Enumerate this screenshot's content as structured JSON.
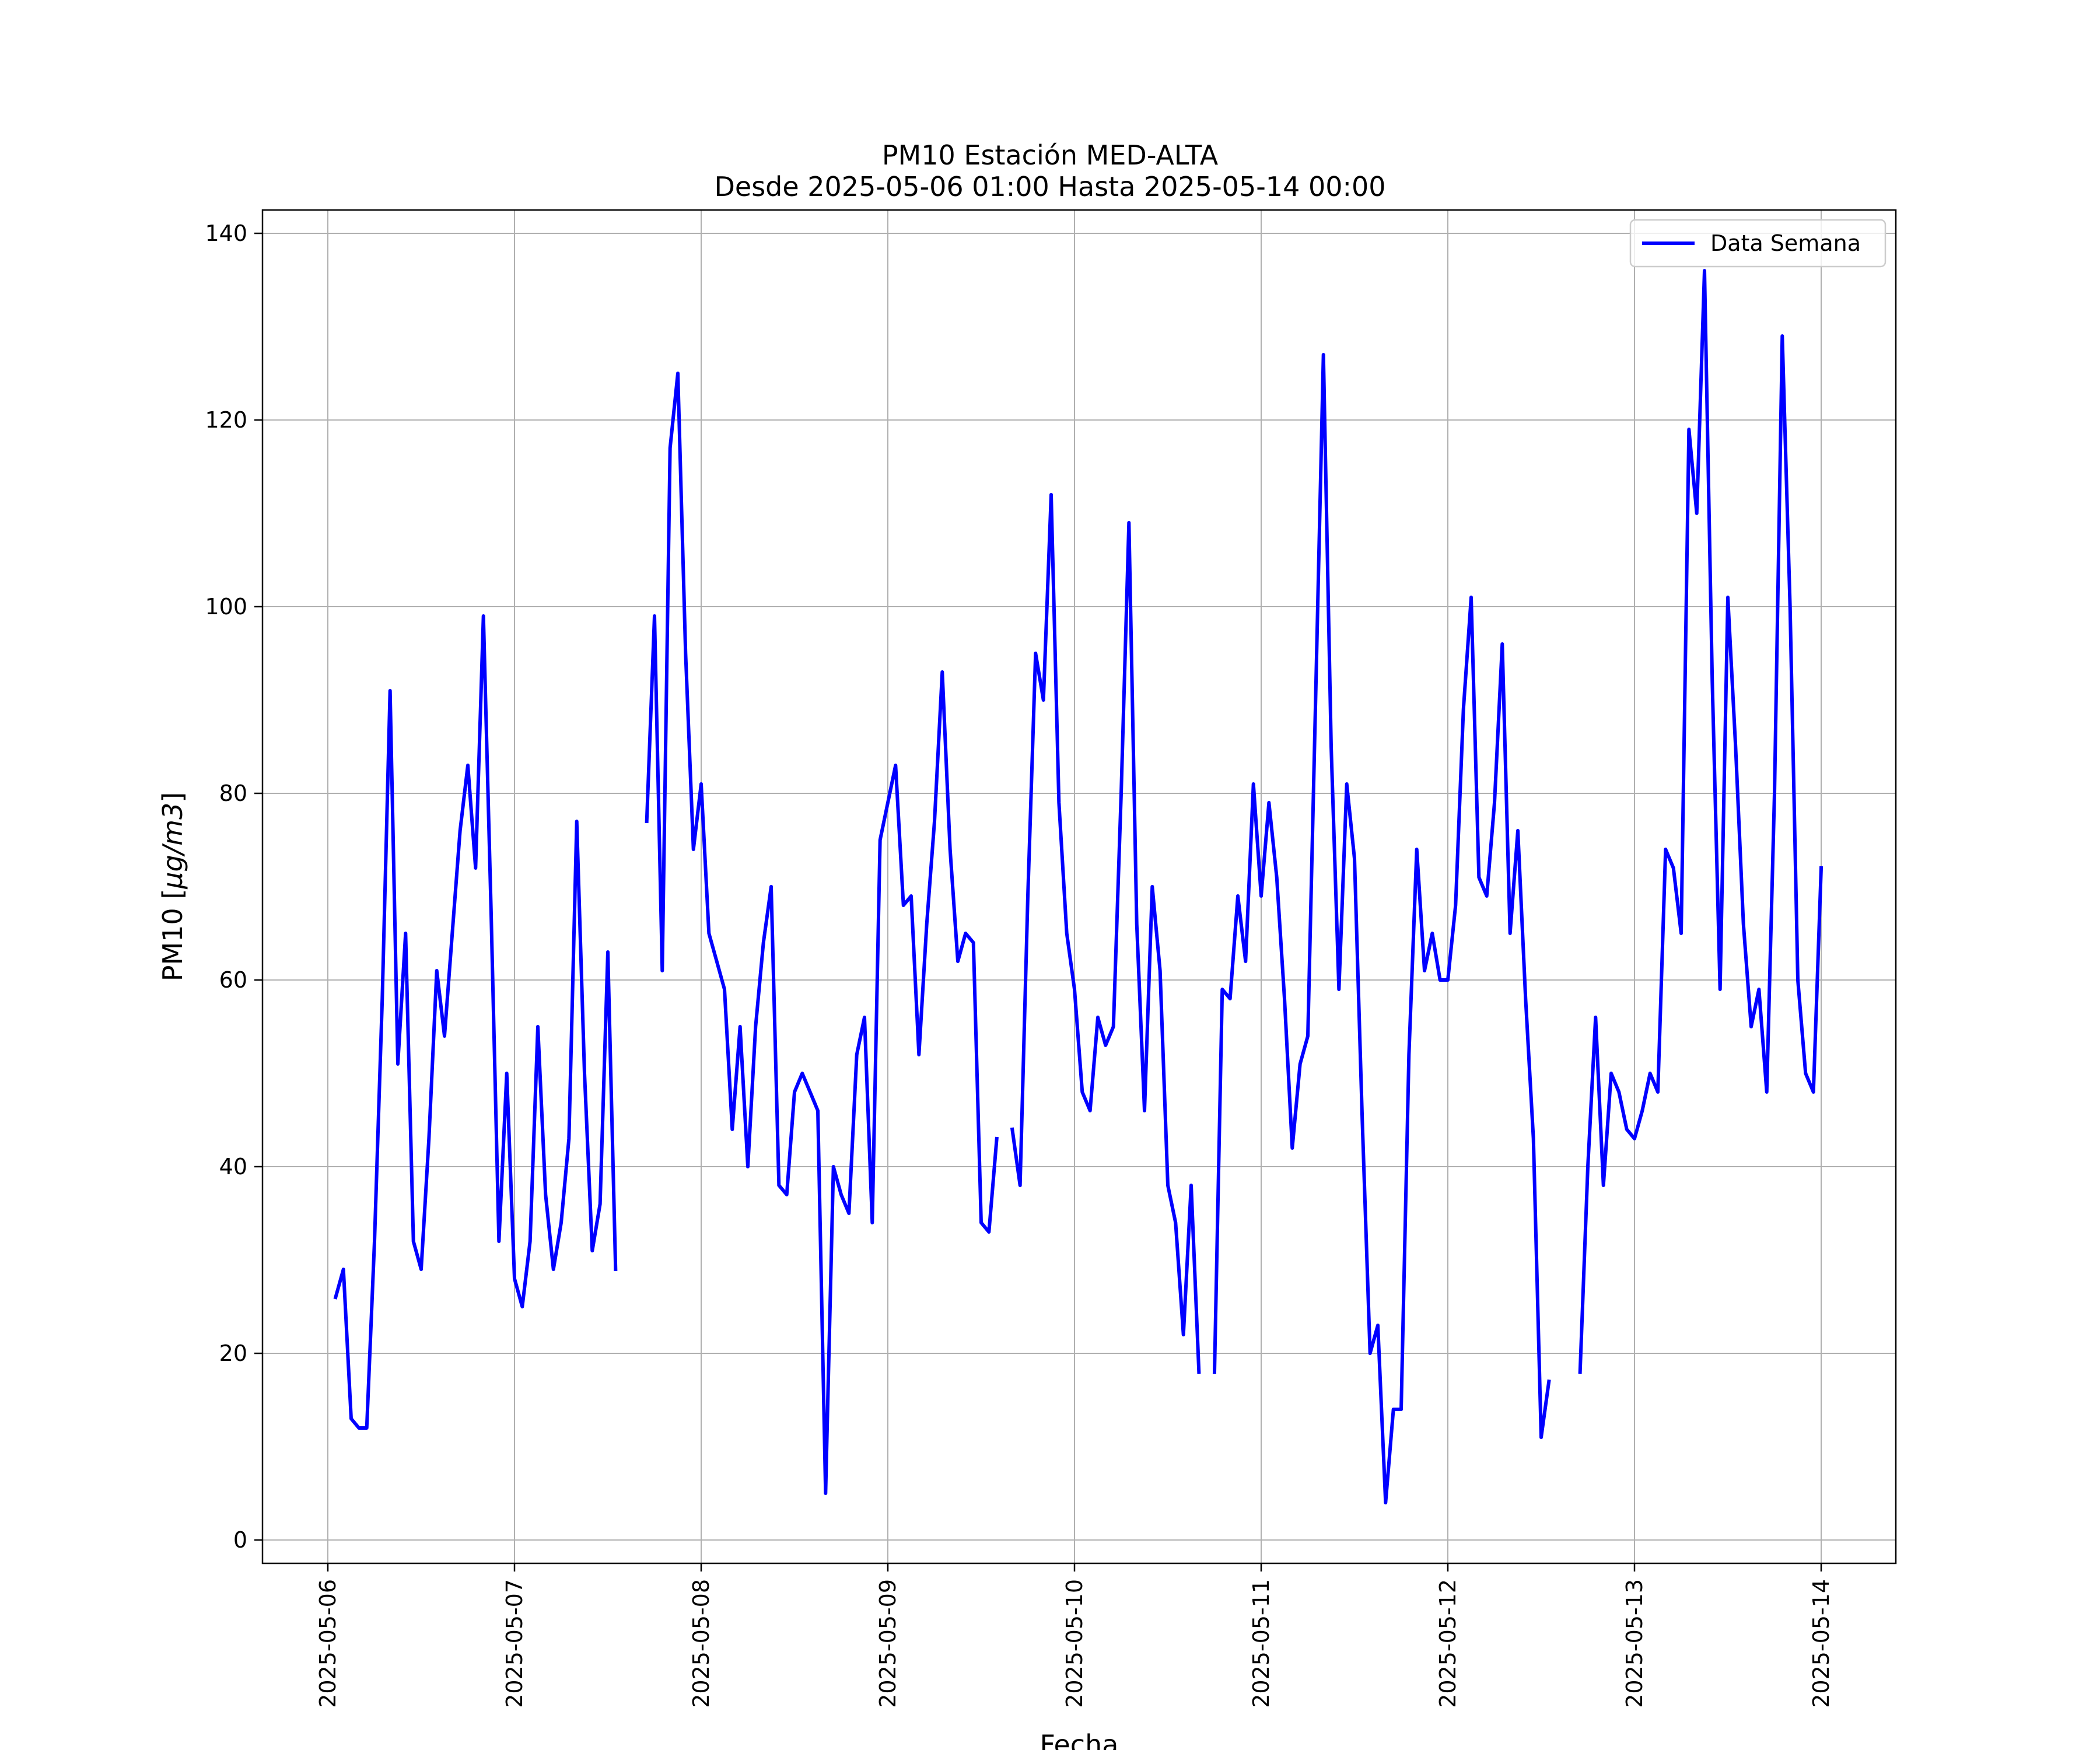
{
  "chart_data": {
    "type": "line",
    "title": "PM10 Estación MED-ALTA",
    "subtitle": "Desde 2025-05-06 01:00 Hasta 2025-05-14 00:00",
    "xlabel": "Fecha",
    "ylabel": "PM10 [μg/m3]",
    "ylabel_prefix": "PM10 [",
    "ylabel_units": "μg/m3",
    "ylabel_suffix": "]",
    "x_ticks": [
      "2025-05-06",
      "2025-05-07",
      "2025-05-08",
      "2025-05-09",
      "2025-05-10",
      "2025-05-11",
      "2025-05-12",
      "2025-05-13",
      "2025-05-14"
    ],
    "y_ticks": [
      0,
      20,
      40,
      60,
      80,
      100,
      120,
      140
    ],
    "xlim": [
      "2025-05-05 15:36",
      "2025-05-14 09:36"
    ],
    "ylim": [
      -2.5,
      142.5
    ],
    "grid": true,
    "legend_position": "top-right",
    "line_color": "#0000ff",
    "series": [
      {
        "name": "Data Semana",
        "color": "#0000ff",
        "points": [
          [
            "2025-05-06 01:00",
            26
          ],
          [
            "2025-05-06 02:00",
            29
          ],
          [
            "2025-05-06 03:00",
            13
          ],
          [
            "2025-05-06 04:00",
            12
          ],
          [
            "2025-05-06 05:00",
            12
          ],
          [
            "2025-05-06 06:00",
            32
          ],
          [
            "2025-05-06 07:00",
            58
          ],
          [
            "2025-05-06 08:00",
            91
          ],
          [
            "2025-05-06 09:00",
            51
          ],
          [
            "2025-05-06 10:00",
            65
          ],
          [
            "2025-05-06 11:00",
            32
          ],
          [
            "2025-05-06 12:00",
            29
          ],
          [
            "2025-05-06 13:00",
            43
          ],
          [
            "2025-05-06 14:00",
            61
          ],
          [
            "2025-05-06 15:00",
            54
          ],
          [
            "2025-05-06 16:00",
            65
          ],
          [
            "2025-05-06 17:00",
            76
          ],
          [
            "2025-05-06 18:00",
            83
          ],
          [
            "2025-05-06 19:00",
            72
          ],
          [
            "2025-05-06 20:00",
            99
          ],
          [
            "2025-05-06 21:00",
            67
          ],
          [
            "2025-05-06 22:00",
            32
          ],
          [
            "2025-05-06 23:00",
            50
          ],
          [
            "2025-05-07 00:00",
            28
          ],
          [
            "2025-05-07 01:00",
            25
          ],
          [
            "2025-05-07 02:00",
            32
          ],
          [
            "2025-05-07 03:00",
            55
          ],
          [
            "2025-05-07 04:00",
            37
          ],
          [
            "2025-05-07 05:00",
            29
          ],
          [
            "2025-05-07 06:00",
            34
          ],
          [
            "2025-05-07 07:00",
            43
          ],
          [
            "2025-05-07 08:00",
            77
          ],
          [
            "2025-05-07 09:00",
            50
          ],
          [
            "2025-05-07 10:00",
            31
          ],
          [
            "2025-05-07 11:00",
            36
          ],
          [
            "2025-05-07 12:00",
            63
          ],
          [
            "2025-05-07 13:00",
            29
          ],
          [
            "2025-05-07 14:00",
            null
          ],
          [
            "2025-05-07 15:00",
            null
          ],
          [
            "2025-05-07 16:00",
            null
          ],
          [
            "2025-05-07 17:00",
            77
          ],
          [
            "2025-05-07 18:00",
            99
          ],
          [
            "2025-05-07 19:00",
            61
          ],
          [
            "2025-05-07 20:00",
            117
          ],
          [
            "2025-05-07 21:00",
            125
          ],
          [
            "2025-05-07 22:00",
            95
          ],
          [
            "2025-05-07 23:00",
            74
          ],
          [
            "2025-05-08 00:00",
            81
          ],
          [
            "2025-05-08 01:00",
            65
          ],
          [
            "2025-05-08 02:00",
            62
          ],
          [
            "2025-05-08 03:00",
            59
          ],
          [
            "2025-05-08 04:00",
            44
          ],
          [
            "2025-05-08 05:00",
            55
          ],
          [
            "2025-05-08 06:00",
            40
          ],
          [
            "2025-05-08 07:00",
            55
          ],
          [
            "2025-05-08 08:00",
            64
          ],
          [
            "2025-05-08 09:00",
            70
          ],
          [
            "2025-05-08 10:00",
            38
          ],
          [
            "2025-05-08 11:00",
            37
          ],
          [
            "2025-05-08 12:00",
            48
          ],
          [
            "2025-05-08 13:00",
            50
          ],
          [
            "2025-05-08 14:00",
            48
          ],
          [
            "2025-05-08 15:00",
            46
          ],
          [
            "2025-05-08 16:00",
            5
          ],
          [
            "2025-05-08 17:00",
            40
          ],
          [
            "2025-05-08 18:00",
            37
          ],
          [
            "2025-05-08 19:00",
            35
          ],
          [
            "2025-05-08 20:00",
            52
          ],
          [
            "2025-05-08 21:00",
            56
          ],
          [
            "2025-05-08 22:00",
            34
          ],
          [
            "2025-05-08 23:00",
            75
          ],
          [
            "2025-05-09 00:00",
            79
          ],
          [
            "2025-05-09 01:00",
            83
          ],
          [
            "2025-05-09 02:00",
            68
          ],
          [
            "2025-05-09 03:00",
            69
          ],
          [
            "2025-05-09 04:00",
            52
          ],
          [
            "2025-05-09 05:00",
            66
          ],
          [
            "2025-05-09 06:00",
            77
          ],
          [
            "2025-05-09 07:00",
            93
          ],
          [
            "2025-05-09 08:00",
            74
          ],
          [
            "2025-05-09 09:00",
            62
          ],
          [
            "2025-05-09 10:00",
            65
          ],
          [
            "2025-05-09 11:00",
            64
          ],
          [
            "2025-05-09 12:00",
            34
          ],
          [
            "2025-05-09 13:00",
            33
          ],
          [
            "2025-05-09 14:00",
            43
          ],
          [
            "2025-05-09 15:00",
            null
          ],
          [
            "2025-05-09 16:00",
            44
          ],
          [
            "2025-05-09 17:00",
            38
          ],
          [
            "2025-05-09 18:00",
            69
          ],
          [
            "2025-05-09 19:00",
            95
          ],
          [
            "2025-05-09 20:00",
            90
          ],
          [
            "2025-05-09 21:00",
            112
          ],
          [
            "2025-05-09 22:00",
            79
          ],
          [
            "2025-05-09 23:00",
            65
          ],
          [
            "2025-05-10 00:00",
            59
          ],
          [
            "2025-05-10 01:00",
            48
          ],
          [
            "2025-05-10 02:00",
            46
          ],
          [
            "2025-05-10 03:00",
            56
          ],
          [
            "2025-05-10 04:00",
            53
          ],
          [
            "2025-05-10 05:00",
            55
          ],
          [
            "2025-05-10 06:00",
            80
          ],
          [
            "2025-05-10 07:00",
            109
          ],
          [
            "2025-05-10 08:00",
            66
          ],
          [
            "2025-05-10 09:00",
            46
          ],
          [
            "2025-05-10 10:00",
            70
          ],
          [
            "2025-05-10 11:00",
            61
          ],
          [
            "2025-05-10 12:00",
            38
          ],
          [
            "2025-05-10 13:00",
            34
          ],
          [
            "2025-05-10 14:00",
            22
          ],
          [
            "2025-05-10 15:00",
            38
          ],
          [
            "2025-05-10 16:00",
            18
          ],
          [
            "2025-05-10 17:00",
            null
          ],
          [
            "2025-05-10 18:00",
            18
          ],
          [
            "2025-05-10 19:00",
            59
          ],
          [
            "2025-05-10 20:00",
            58
          ],
          [
            "2025-05-10 21:00",
            69
          ],
          [
            "2025-05-10 22:00",
            62
          ],
          [
            "2025-05-10 23:00",
            81
          ],
          [
            "2025-05-11 00:00",
            69
          ],
          [
            "2025-05-11 01:00",
            79
          ],
          [
            "2025-05-11 02:00",
            71
          ],
          [
            "2025-05-11 03:00",
            58
          ],
          [
            "2025-05-11 04:00",
            42
          ],
          [
            "2025-05-11 05:00",
            51
          ],
          [
            "2025-05-11 06:00",
            54
          ],
          [
            "2025-05-11 07:00",
            90
          ],
          [
            "2025-05-11 08:00",
            127
          ],
          [
            "2025-05-11 09:00",
            85
          ],
          [
            "2025-05-11 10:00",
            59
          ],
          [
            "2025-05-11 11:00",
            81
          ],
          [
            "2025-05-11 12:00",
            73
          ],
          [
            "2025-05-11 13:00",
            45
          ],
          [
            "2025-05-11 14:00",
            20
          ],
          [
            "2025-05-11 15:00",
            23
          ],
          [
            "2025-05-11 16:00",
            4
          ],
          [
            "2025-05-11 17:00",
            14
          ],
          [
            "2025-05-11 18:00",
            14
          ],
          [
            "2025-05-11 19:00",
            52
          ],
          [
            "2025-05-11 20:00",
            74
          ],
          [
            "2025-05-11 21:00",
            61
          ],
          [
            "2025-05-11 22:00",
            65
          ],
          [
            "2025-05-11 23:00",
            60
          ],
          [
            "2025-05-12 00:00",
            60
          ],
          [
            "2025-05-12 01:00",
            68
          ],
          [
            "2025-05-12 02:00",
            89
          ],
          [
            "2025-05-12 03:00",
            101
          ],
          [
            "2025-05-12 04:00",
            71
          ],
          [
            "2025-05-12 05:00",
            69
          ],
          [
            "2025-05-12 06:00",
            79
          ],
          [
            "2025-05-12 07:00",
            96
          ],
          [
            "2025-05-12 08:00",
            65
          ],
          [
            "2025-05-12 09:00",
            76
          ],
          [
            "2025-05-12 10:00",
            58
          ],
          [
            "2025-05-12 11:00",
            43
          ],
          [
            "2025-05-12 12:00",
            11
          ],
          [
            "2025-05-12 13:00",
            17
          ],
          [
            "2025-05-12 14:00",
            null
          ],
          [
            "2025-05-12 15:00",
            null
          ],
          [
            "2025-05-12 16:00",
            null
          ],
          [
            "2025-05-12 17:00",
            18
          ],
          [
            "2025-05-12 18:00",
            40
          ],
          [
            "2025-05-12 19:00",
            56
          ],
          [
            "2025-05-12 20:00",
            38
          ],
          [
            "2025-05-12 21:00",
            50
          ],
          [
            "2025-05-12 22:00",
            48
          ],
          [
            "2025-05-12 23:00",
            44
          ],
          [
            "2025-05-13 00:00",
            43
          ],
          [
            "2025-05-13 01:00",
            46
          ],
          [
            "2025-05-13 02:00",
            50
          ],
          [
            "2025-05-13 03:00",
            48
          ],
          [
            "2025-05-13 04:00",
            74
          ],
          [
            "2025-05-13 05:00",
            72
          ],
          [
            "2025-05-13 06:00",
            65
          ],
          [
            "2025-05-13 07:00",
            119
          ],
          [
            "2025-05-13 08:00",
            110
          ],
          [
            "2025-05-13 09:00",
            136
          ],
          [
            "2025-05-13 10:00",
            92
          ],
          [
            "2025-05-13 11:00",
            59
          ],
          [
            "2025-05-13 12:00",
            101
          ],
          [
            "2025-05-13 13:00",
            85
          ],
          [
            "2025-05-13 14:00",
            66
          ],
          [
            "2025-05-13 15:00",
            55
          ],
          [
            "2025-05-13 16:00",
            59
          ],
          [
            "2025-05-13 17:00",
            48
          ],
          [
            "2025-05-13 18:00",
            80
          ],
          [
            "2025-05-13 19:00",
            129
          ],
          [
            "2025-05-13 20:00",
            100
          ],
          [
            "2025-05-13 21:00",
            60
          ],
          [
            "2025-05-13 22:00",
            50
          ],
          [
            "2025-05-13 23:00",
            48
          ],
          [
            "2025-05-14 00:00",
            72
          ]
        ]
      }
    ]
  }
}
